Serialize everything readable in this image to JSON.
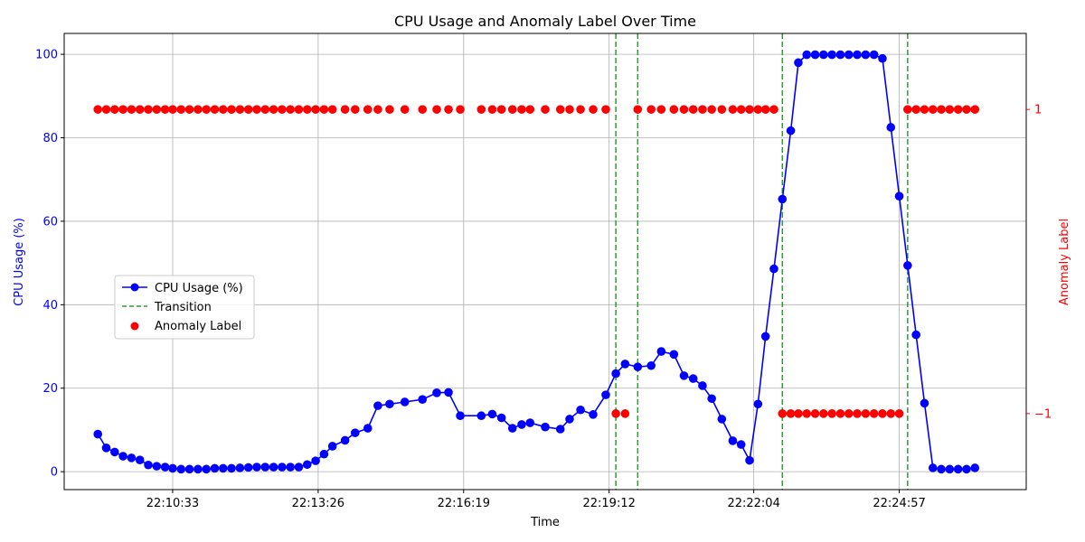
{
  "chart_data": {
    "type": "line",
    "title": "CPU Usage and Anomaly Label Over Time",
    "xlabel": "Time",
    "ylabel": "CPU Usage (%)",
    "y2label": "Anomaly Label",
    "grid": true,
    "legend_position": "center-left",
    "colors": {
      "cpu": "#0000ff",
      "transition": "#2ca02c",
      "anomaly": "#ff0000",
      "ylabel": "#0000ff",
      "y2label": "#ff0000"
    },
    "x_ticks": [
      "22:10:33",
      "22:13:26",
      "22:16:19",
      "22:19:12",
      "22:22:04",
      "22:24:57"
    ],
    "x_range": [
      "22:08:24",
      "22:27:28"
    ],
    "ylim": [
      -4.3,
      105
    ],
    "y_ticks": [
      0,
      20,
      40,
      60,
      80,
      100
    ],
    "y2lim": [
      -1.5,
      1.5
    ],
    "y2_ticks": [
      -1,
      1
    ],
    "legend": [
      {
        "label": "CPU Usage (%)",
        "kind": "line-marker",
        "color": "#0000ff"
      },
      {
        "label": "Transition",
        "kind": "dashed",
        "color": "#2ca02c"
      },
      {
        "label": "Anomaly Label",
        "kind": "marker",
        "color": "#ff0000"
      }
    ],
    "series": [
      {
        "name": "CPU Usage (%)",
        "points": [
          [
            "22:09:04",
            9.0
          ],
          [
            "22:09:14",
            5.7
          ],
          [
            "22:09:24",
            4.7
          ],
          [
            "22:09:34",
            3.7
          ],
          [
            "22:09:44",
            3.3
          ],
          [
            "22:09:54",
            2.8
          ],
          [
            "22:10:04",
            1.6
          ],
          [
            "22:10:14",
            1.3
          ],
          [
            "22:10:24",
            1.1
          ],
          [
            "22:10:33",
            0.8
          ],
          [
            "22:10:43",
            0.6
          ],
          [
            "22:10:53",
            0.6
          ],
          [
            "22:11:03",
            0.6
          ],
          [
            "22:11:13",
            0.6
          ],
          [
            "22:11:23",
            0.8
          ],
          [
            "22:11:33",
            0.8
          ],
          [
            "22:11:43",
            0.8
          ],
          [
            "22:11:53",
            0.9
          ],
          [
            "22:12:03",
            1.0
          ],
          [
            "22:12:13",
            1.1
          ],
          [
            "22:12:23",
            1.1
          ],
          [
            "22:12:33",
            1.1
          ],
          [
            "22:12:43",
            1.1
          ],
          [
            "22:12:53",
            1.1
          ],
          [
            "22:13:03",
            1.1
          ],
          [
            "22:13:13",
            1.7
          ],
          [
            "22:13:23",
            2.6
          ],
          [
            "22:13:33",
            4.2
          ],
          [
            "22:13:43",
            6.1
          ],
          [
            "22:13:58",
            7.5
          ],
          [
            "22:14:10",
            9.3
          ],
          [
            "22:14:25",
            10.4
          ],
          [
            "22:14:37",
            15.8
          ],
          [
            "22:14:51",
            16.2
          ],
          [
            "22:15:09",
            16.7
          ],
          [
            "22:15:30",
            17.3
          ],
          [
            "22:15:47",
            18.9
          ],
          [
            "22:16:01",
            19.0
          ],
          [
            "22:16:15",
            13.4
          ],
          [
            "22:16:40",
            13.4
          ],
          [
            "22:16:53",
            13.8
          ],
          [
            "22:17:04",
            12.9
          ],
          [
            "22:17:17",
            10.4
          ],
          [
            "22:17:28",
            11.3
          ],
          [
            "22:17:38",
            11.7
          ],
          [
            "22:17:56",
            10.7
          ],
          [
            "22:18:14",
            10.2
          ],
          [
            "22:18:25",
            12.6
          ],
          [
            "22:18:38",
            14.8
          ],
          [
            "22:18:53",
            13.7
          ],
          [
            "22:19:08",
            18.4
          ],
          [
            "22:19:20",
            23.5
          ],
          [
            "22:19:31",
            25.8
          ],
          [
            "22:19:46",
            25.1
          ],
          [
            "22:20:02",
            25.4
          ],
          [
            "22:20:14",
            28.8
          ],
          [
            "22:20:29",
            28.1
          ],
          [
            "22:20:41",
            23.0
          ],
          [
            "22:20:52",
            22.3
          ],
          [
            "22:21:03",
            20.6
          ],
          [
            "22:21:14",
            17.5
          ],
          [
            "22:21:26",
            12.6
          ],
          [
            "22:21:39",
            7.4
          ],
          [
            "22:21:49",
            6.5
          ],
          [
            "22:21:59",
            2.7
          ],
          [
            "22:22:09",
            16.2
          ],
          [
            "22:22:18",
            32.4
          ],
          [
            "22:22:28",
            48.6
          ],
          [
            "22:22:38",
            65.3
          ],
          [
            "22:22:48",
            81.7
          ],
          [
            "22:22:57",
            98.0
          ],
          [
            "22:23:07",
            99.9
          ],
          [
            "22:23:17",
            99.9
          ],
          [
            "22:23:27",
            99.9
          ],
          [
            "22:23:37",
            99.9
          ],
          [
            "22:23:47",
            99.9
          ],
          [
            "22:23:57",
            99.9
          ],
          [
            "22:24:07",
            99.9
          ],
          [
            "22:24:17",
            99.9
          ],
          [
            "22:24:27",
            99.9
          ],
          [
            "22:24:37",
            99.0
          ],
          [
            "22:24:47",
            82.5
          ],
          [
            "22:24:57",
            66.0
          ],
          [
            "22:25:07",
            49.4
          ],
          [
            "22:25:17",
            32.8
          ],
          [
            "22:25:27",
            16.4
          ],
          [
            "22:25:37",
            0.9
          ],
          [
            "22:25:47",
            0.6
          ],
          [
            "22:25:57",
            0.6
          ],
          [
            "22:26:07",
            0.6
          ],
          [
            "22:26:17",
            0.6
          ],
          [
            "22:26:27",
            0.9
          ]
        ]
      },
      {
        "name": "Anomaly Label",
        "points": [
          [
            "22:09:04",
            1
          ],
          [
            "22:09:14",
            1
          ],
          [
            "22:09:24",
            1
          ],
          [
            "22:09:34",
            1
          ],
          [
            "22:09:44",
            1
          ],
          [
            "22:09:54",
            1
          ],
          [
            "22:10:04",
            1
          ],
          [
            "22:10:14",
            1
          ],
          [
            "22:10:24",
            1
          ],
          [
            "22:10:33",
            1
          ],
          [
            "22:10:43",
            1
          ],
          [
            "22:10:53",
            1
          ],
          [
            "22:11:03",
            1
          ],
          [
            "22:11:13",
            1
          ],
          [
            "22:11:23",
            1
          ],
          [
            "22:11:33",
            1
          ],
          [
            "22:11:43",
            1
          ],
          [
            "22:11:53",
            1
          ],
          [
            "22:12:03",
            1
          ],
          [
            "22:12:13",
            1
          ],
          [
            "22:12:23",
            1
          ],
          [
            "22:12:33",
            1
          ],
          [
            "22:12:43",
            1
          ],
          [
            "22:12:53",
            1
          ],
          [
            "22:13:03",
            1
          ],
          [
            "22:13:13",
            1
          ],
          [
            "22:13:23",
            1
          ],
          [
            "22:13:33",
            1
          ],
          [
            "22:13:43",
            1
          ],
          [
            "22:13:58",
            1
          ],
          [
            "22:14:10",
            1
          ],
          [
            "22:14:25",
            1
          ],
          [
            "22:14:37",
            1
          ],
          [
            "22:14:51",
            1
          ],
          [
            "22:15:09",
            1
          ],
          [
            "22:15:30",
            1
          ],
          [
            "22:15:47",
            1
          ],
          [
            "22:16:01",
            1
          ],
          [
            "22:16:15",
            1
          ],
          [
            "22:16:40",
            1
          ],
          [
            "22:16:53",
            1
          ],
          [
            "22:17:04",
            1
          ],
          [
            "22:17:17",
            1
          ],
          [
            "22:17:28",
            1
          ],
          [
            "22:17:38",
            1
          ],
          [
            "22:17:56",
            1
          ],
          [
            "22:18:14",
            1
          ],
          [
            "22:18:25",
            1
          ],
          [
            "22:18:38",
            1
          ],
          [
            "22:18:53",
            1
          ],
          [
            "22:19:08",
            1
          ],
          [
            "22:19:20",
            -1
          ],
          [
            "22:19:31",
            -1
          ],
          [
            "22:19:46",
            1
          ],
          [
            "22:20:02",
            1
          ],
          [
            "22:20:14",
            1
          ],
          [
            "22:20:29",
            1
          ],
          [
            "22:20:41",
            1
          ],
          [
            "22:20:52",
            1
          ],
          [
            "22:21:03",
            1
          ],
          [
            "22:21:14",
            1
          ],
          [
            "22:21:26",
            1
          ],
          [
            "22:21:39",
            1
          ],
          [
            "22:21:49",
            1
          ],
          [
            "22:21:59",
            1
          ],
          [
            "22:22:09",
            1
          ],
          [
            "22:22:18",
            1
          ],
          [
            "22:22:28",
            1
          ],
          [
            "22:22:38",
            -1
          ],
          [
            "22:22:48",
            -1
          ],
          [
            "22:22:57",
            -1
          ],
          [
            "22:23:07",
            -1
          ],
          [
            "22:23:17",
            -1
          ],
          [
            "22:23:27",
            -1
          ],
          [
            "22:23:37",
            -1
          ],
          [
            "22:23:47",
            -1
          ],
          [
            "22:23:57",
            -1
          ],
          [
            "22:24:07",
            -1
          ],
          [
            "22:24:17",
            -1
          ],
          [
            "22:24:27",
            -1
          ],
          [
            "22:24:37",
            -1
          ],
          [
            "22:24:47",
            -1
          ],
          [
            "22:24:57",
            -1
          ],
          [
            "22:25:07",
            1
          ],
          [
            "22:25:17",
            1
          ],
          [
            "22:25:27",
            1
          ],
          [
            "22:25:37",
            1
          ],
          [
            "22:25:47",
            1
          ],
          [
            "22:25:57",
            1
          ],
          [
            "22:26:07",
            1
          ],
          [
            "22:26:17",
            1
          ],
          [
            "22:26:27",
            1
          ]
        ]
      }
    ],
    "transitions": [
      "22:19:20",
      "22:19:46",
      "22:22:38",
      "22:25:07"
    ]
  }
}
